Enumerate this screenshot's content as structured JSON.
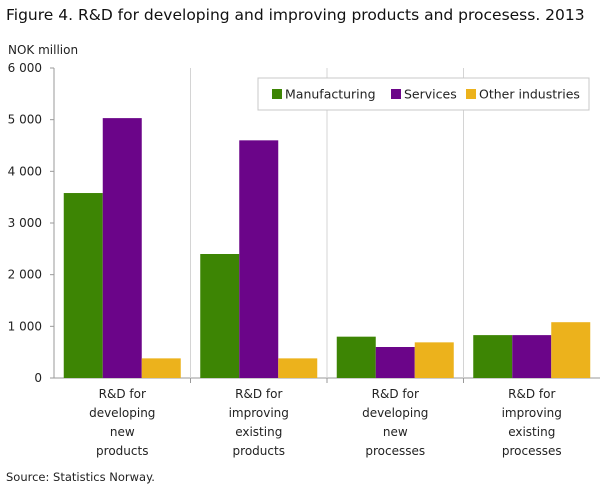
{
  "figure": {
    "title": "Figure 4. R&D for developing and improving products and procesess. 2013",
    "unit_label": "NOK million",
    "source": "Source: Statistics Norway."
  },
  "chart_data": {
    "type": "bar",
    "title": "Figure 4. R&D for developing and improving products and procesess. 2013",
    "ylabel": "NOK million",
    "xlabel": "",
    "ylim": [
      0,
      6000
    ],
    "yticks": [
      0,
      1000,
      2000,
      3000,
      4000,
      5000,
      6000
    ],
    "ytick_labels": [
      "0",
      "1 000",
      "2 000",
      "3 000",
      "4 000",
      "5 000",
      "6 000"
    ],
    "categories": [
      [
        "R&D for",
        "developing",
        "new",
        "products"
      ],
      [
        "R&D for",
        "improving",
        "existing",
        "products"
      ],
      [
        "R&D for",
        "developing",
        "new",
        "processes"
      ],
      [
        "R&D for",
        "improving",
        "existing",
        "processes"
      ]
    ],
    "series": [
      {
        "name": "Manufacturing",
        "color": "#3d8504",
        "values": [
          3580,
          2400,
          800,
          830
        ]
      },
      {
        "name": "Services",
        "color": "#6b0589",
        "values": [
          5030,
          4600,
          600,
          830
        ]
      },
      {
        "name": "Other industries",
        "color": "#ecb21c",
        "values": [
          380,
          380,
          690,
          1080
        ]
      }
    ],
    "grid": "vertical separators",
    "legend_position": "top-right"
  }
}
